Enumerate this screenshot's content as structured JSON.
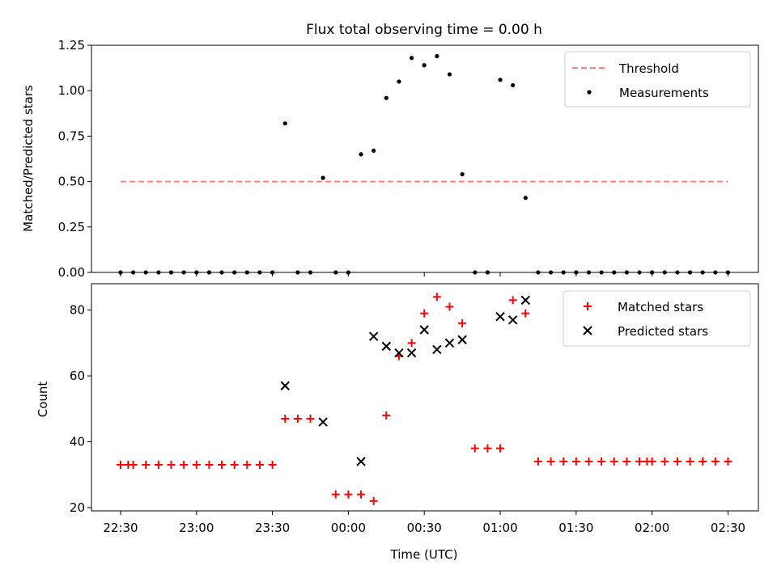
{
  "title": "Flux total observing time = 0.00 h",
  "xlabel": "Time (UTC)",
  "x_ticks": [
    "22:30",
    "23:00",
    "23:30",
    "00:00",
    "00:30",
    "01:00",
    "01:30",
    "02:00",
    "02:30"
  ],
  "colors": {
    "threshold": "#ff7f7f",
    "measurements": "#000000",
    "matched": "#ff0000",
    "predicted": "#000000"
  },
  "chart_data": [
    {
      "type": "scatter",
      "ylabel": "Matched/Predicted stars",
      "ylim": [
        0,
        1.25
      ],
      "y_ticks": [
        "0.00",
        "0.25",
        "0.50",
        "0.75",
        "1.00",
        "1.25"
      ],
      "xlim_minutes_after_2230": [
        -11.5,
        252
      ],
      "legend_position": "top-right",
      "threshold": {
        "name": "Threshold",
        "value": 0.5,
        "x_range": [
          "22:30",
          "02:30"
        ],
        "style": "dashed"
      },
      "series": [
        {
          "name": "Measurements",
          "x": [
            "22:30",
            "22:35",
            "22:40",
            "22:45",
            "22:50",
            "22:55",
            "23:00",
            "23:05",
            "23:10",
            "23:15",
            "23:20",
            "23:25",
            "23:30",
            "23:35",
            "23:40",
            "23:45",
            "23:50",
            "23:55",
            "00:00",
            "00:05",
            "00:10",
            "00:15",
            "00:20",
            "00:25",
            "00:30",
            "00:35",
            "00:40",
            "00:45",
            "00:50",
            "00:55",
            "01:00",
            "01:05",
            "01:10",
            "01:15",
            "01:20",
            "01:25",
            "01:30",
            "01:35",
            "01:40",
            "01:45",
            "01:50",
            "01:55",
            "02:00",
            "02:05",
            "02:10",
            "02:15",
            "02:20",
            "02:25",
            "02:30"
          ],
          "y": [
            0,
            0,
            0,
            0,
            0,
            0,
            0,
            0,
            0,
            0,
            0,
            0,
            0,
            0.82,
            0,
            0,
            0.52,
            0,
            0,
            0.65,
            0.67,
            0.96,
            1.05,
            1.18,
            1.14,
            1.19,
            1.09,
            0.54,
            0,
            0,
            1.06,
            1.03,
            0.41,
            0,
            0,
            0,
            0,
            0,
            0,
            0,
            0,
            0,
            0,
            0,
            0,
            0,
            0,
            0,
            0
          ]
        }
      ]
    },
    {
      "type": "scatter",
      "ylabel": "Count",
      "ylim": [
        19,
        88
      ],
      "y_ticks": [
        "20",
        "40",
        "60",
        "80"
      ],
      "legend_position": "top-right",
      "series": [
        {
          "name": "Matched stars",
          "marker": "+",
          "x": [
            "22:30",
            "22:33",
            "22:35",
            "22:40",
            "22:45",
            "22:50",
            "22:55",
            "23:00",
            "23:05",
            "23:10",
            "23:15",
            "23:20",
            "23:25",
            "23:30",
            "23:35",
            "23:40",
            "23:45",
            "23:55",
            "00:00",
            "00:05",
            "00:10",
            "00:15",
            "00:20",
            "00:25",
            "00:30",
            "00:35",
            "00:40",
            "00:45",
            "00:50",
            "00:55",
            "01:00",
            "01:05",
            "01:10",
            "01:15",
            "01:20",
            "01:25",
            "01:30",
            "01:35",
            "01:40",
            "01:45",
            "01:50",
            "01:55",
            "01:58",
            "02:00",
            "02:05",
            "02:10",
            "02:15",
            "02:20",
            "02:25",
            "02:30"
          ],
          "y": [
            33,
            33,
            33,
            33,
            33,
            33,
            33,
            33,
            33,
            33,
            33,
            33,
            33,
            33,
            47,
            47,
            47,
            24,
            24,
            24,
            22,
            48,
            66,
            70,
            79,
            84,
            81,
            76,
            38,
            38,
            38,
            83,
            79,
            34,
            34,
            34,
            34,
            34,
            34,
            34,
            34,
            34,
            34,
            34,
            34,
            34,
            34,
            34,
            34,
            34
          ]
        },
        {
          "name": "Predicted stars",
          "marker": "x",
          "x": [
            "23:35",
            "23:50",
            "00:05",
            "00:10",
            "00:15",
            "00:20",
            "00:25",
            "00:30",
            "00:35",
            "00:40",
            "00:45",
            "01:00",
            "01:05",
            "01:10"
          ],
          "y": [
            57,
            46,
            34,
            72,
            69,
            67,
            67,
            74,
            68,
            70,
            71,
            78,
            77,
            83
          ]
        }
      ]
    }
  ]
}
